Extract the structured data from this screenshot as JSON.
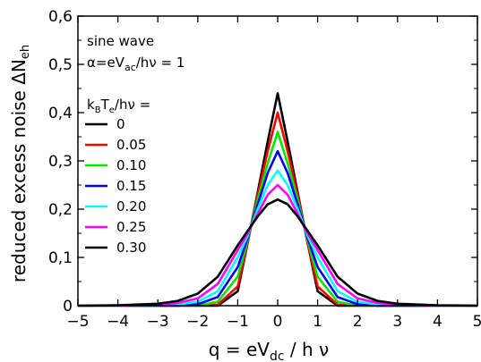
{
  "chart_data": {
    "type": "line",
    "annotation": {
      "line1": "sine wave",
      "line2_pre": "α=eV",
      "line2_sub": "ac",
      "line2_post": "/hν = 1"
    },
    "legend_title": {
      "k": "k",
      "b": "B",
      "t": "T",
      "e": "e",
      "rest": "/hν ="
    },
    "xlabel": {
      "pre": "q = eV",
      "sub": "dc",
      "post": " / h ν"
    },
    "ylabel": {
      "main": "reduced excess noise ΔN",
      "sub": "eh"
    },
    "xlim": [
      -5,
      5
    ],
    "ylim": [
      0,
      0.6
    ],
    "x_ticks": [
      -5,
      -4,
      -3,
      -2,
      -1,
      0,
      1,
      2,
      3,
      4,
      5
    ],
    "x_tick_labels": [
      "−5",
      "−4",
      "−3",
      "−2",
      "−1",
      "0",
      "1",
      "2",
      "3",
      "4",
      "5"
    ],
    "y_ticks": [
      0,
      0.1,
      0.2,
      0.3,
      0.4,
      0.5,
      0.6
    ],
    "y_tick_labels": [
      "0",
      "0,1",
      "0,2",
      "0,3",
      "0,4",
      "0,5",
      "0,6"
    ],
    "grid": false,
    "legend_position": "left",
    "series": [
      {
        "name": "0",
        "color": "#000000",
        "kT": 0
      },
      {
        "name": "0.05",
        "color": "#ff0000",
        "kT": 0.05
      },
      {
        "name": "0.10",
        "color": "#00e600",
        "kT": 0.1
      },
      {
        "name": "0.15",
        "color": "#0000ff",
        "kT": 0.15
      },
      {
        "name": "0.20",
        "color": "#00ffff",
        "kT": 0.2
      },
      {
        "name": "0.25",
        "color": "#ff00ff",
        "kT": 0.25
      },
      {
        "name": "0.30",
        "color": "#000000",
        "kT": 0.3
      }
    ],
    "points": {
      "x": [
        -5,
        -4,
        -3,
        -2.5,
        -2,
        -1.5,
        -1,
        -0.75,
        -0.5,
        -0.25,
        0,
        0.25,
        0.5,
        0.75,
        1,
        1.5,
        2,
        2.5,
        3,
        4,
        5
      ],
      "y": [
        [
          0,
          0,
          0,
          0,
          0,
          0,
          0.03,
          0.13,
          0.235,
          0.34,
          0.44,
          0.34,
          0.235,
          0.13,
          0.03,
          0,
          0,
          0,
          0,
          0,
          0
        ],
        [
          0,
          0,
          0,
          0,
          0,
          0.002,
          0.04,
          0.13,
          0.23,
          0.32,
          0.4,
          0.32,
          0.23,
          0.13,
          0.04,
          0.002,
          0,
          0,
          0,
          0,
          0
        ],
        [
          0,
          0,
          0,
          0,
          0,
          0.008,
          0.06,
          0.135,
          0.22,
          0.295,
          0.36,
          0.295,
          0.22,
          0.135,
          0.06,
          0.008,
          0,
          0,
          0,
          0,
          0
        ],
        [
          0,
          0,
          0,
          0,
          0.003,
          0.018,
          0.08,
          0.14,
          0.21,
          0.275,
          0.32,
          0.275,
          0.21,
          0.14,
          0.08,
          0.018,
          0.003,
          0,
          0,
          0,
          0
        ],
        [
          0,
          0,
          0.001,
          0.003,
          0.008,
          0.03,
          0.1,
          0.145,
          0.2,
          0.25,
          0.28,
          0.25,
          0.2,
          0.145,
          0.1,
          0.03,
          0.008,
          0.003,
          0.001,
          0,
          0
        ],
        [
          0,
          0,
          0.002,
          0.006,
          0.015,
          0.045,
          0.115,
          0.15,
          0.19,
          0.23,
          0.25,
          0.23,
          0.19,
          0.15,
          0.115,
          0.045,
          0.015,
          0.006,
          0.002,
          0,
          0
        ],
        [
          0,
          0.001,
          0.004,
          0.01,
          0.025,
          0.06,
          0.125,
          0.155,
          0.185,
          0.21,
          0.22,
          0.21,
          0.185,
          0.155,
          0.125,
          0.06,
          0.025,
          0.01,
          0.004,
          0.001,
          0
        ]
      ]
    }
  }
}
